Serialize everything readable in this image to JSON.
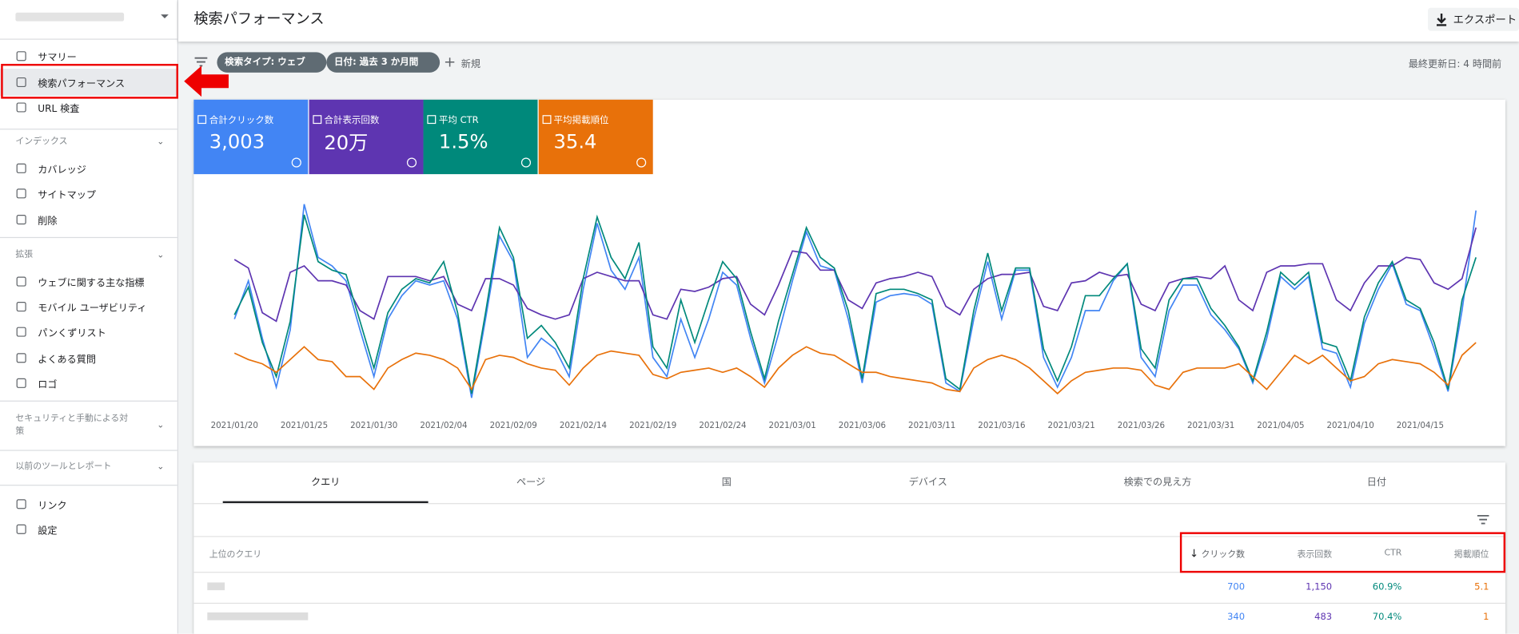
{
  "header": {
    "title": "検索パフォーマンス",
    "export": "エクスポート"
  },
  "nav": {
    "main": [
      "サマリー",
      "検索パフォーマンス",
      "URL 検査"
    ],
    "sections": [
      {
        "title": "インデックス",
        "items": [
          "カバレッジ",
          "サイトマップ",
          "削除"
        ]
      },
      {
        "title": "拡張",
        "items": [
          "ウェブに関する主な指標",
          "モバイル ユーザビリティ",
          "パンくずリスト",
          "よくある質問",
          "ロゴ"
        ]
      },
      {
        "title": "セキュリティと手動による対策",
        "items": []
      },
      {
        "title": "以前のツールとレポート",
        "items": []
      }
    ],
    "bottom": [
      "リンク",
      "設定"
    ]
  },
  "filters": {
    "chips": [
      "検索タイプ: ウェブ",
      "日付: 過去 3 か月間"
    ],
    "new": "新規",
    "updated": "最終更新日: 4 時間前"
  },
  "chart_data": {
    "type": "line",
    "ylim": [
      0,
      100
    ],
    "categories": [
      "2021/01/20",
      null,
      null,
      null,
      null,
      "2021/01/25",
      null,
      null,
      null,
      null,
      "2021/01/30",
      null,
      null,
      null,
      null,
      "2021/02/04",
      null,
      null,
      null,
      null,
      "2021/02/09",
      null,
      null,
      null,
      null,
      "2021/02/14",
      null,
      null,
      null,
      null,
      "2021/02/19",
      null,
      null,
      null,
      null,
      "2021/02/24",
      null,
      null,
      null,
      null,
      "2021/03/01",
      null,
      null,
      null,
      null,
      "2021/03/06",
      null,
      null,
      null,
      null,
      "2021/03/11",
      null,
      null,
      null,
      null,
      "2021/03/16",
      null,
      null,
      null,
      null,
      "2021/03/21",
      null,
      null,
      null,
      null,
      "2021/03/26",
      null,
      null,
      null,
      null,
      "2021/03/31",
      null,
      null,
      null,
      null,
      "2021/04/05",
      null,
      null,
      null,
      null,
      "2021/04/10",
      null,
      null,
      null,
      null,
      "2021/04/15",
      null,
      null,
      null,
      null
    ],
    "series": [
      {
        "name": "合計クリック数",
        "total": "3,003",
        "color": "#4285f4",
        "values": [
          41,
          59,
          32,
          9,
          36,
          95,
          70,
          66,
          59,
          36,
          14,
          41,
          52,
          59,
          57,
          59,
          41,
          4,
          41,
          80,
          68,
          23,
          32,
          27,
          14,
          55,
          86,
          64,
          55,
          70,
          23,
          14,
          41,
          23,
          41,
          63,
          57,
          32,
          11,
          34,
          59,
          82,
          66,
          64,
          41,
          11,
          49,
          52,
          53,
          52,
          48,
          11,
          7,
          41,
          68,
          41,
          64,
          64,
          23,
          9,
          23,
          45,
          45,
          59,
          67,
          23,
          14,
          45,
          57,
          57,
          43,
          36,
          27,
          11,
          32,
          61,
          55,
          61,
          27,
          25,
          9,
          39,
          55,
          67,
          48,
          45,
          27,
          7,
          45,
          92
        ]
      },
      {
        "name": "合計表示回数",
        "total": "20万",
        "color": "#5e35b1",
        "values": [
          69,
          65,
          44,
          40,
          63,
          66,
          59,
          59,
          57,
          45,
          41,
          61,
          61,
          61,
          59,
          61,
          48,
          45,
          60,
          60,
          57,
          46,
          43,
          41,
          43,
          60,
          63,
          61,
          59,
          59,
          43,
          41,
          55,
          54,
          56,
          60,
          61,
          48,
          43,
          57,
          73,
          72,
          64,
          64,
          50,
          46,
          58,
          60,
          61,
          63,
          61,
          47,
          43,
          55,
          60,
          62,
          62,
          63,
          47,
          45,
          58,
          59,
          63,
          61,
          62,
          48,
          45,
          58,
          60,
          61,
          60,
          66,
          50,
          45,
          63,
          66,
          66,
          67,
          67,
          50,
          45,
          58,
          66,
          66,
          70,
          69,
          58,
          55,
          60,
          84
        ]
      },
      {
        "name": "平均 CTR",
        "total": "1.5%",
        "color": "#00897b",
        "values": [
          43,
          56,
          30,
          14,
          40,
          90,
          68,
          64,
          62,
          40,
          18,
          44,
          55,
          60,
          58,
          68,
          44,
          6,
          44,
          84,
          70,
          32,
          38,
          30,
          18,
          60,
          89,
          70,
          60,
          77,
          28,
          18,
          50,
          30,
          50,
          68,
          60,
          35,
          13,
          40,
          62,
          84,
          70,
          65,
          45,
          13,
          53,
          55,
          55,
          53,
          50,
          13,
          8,
          45,
          72,
          45,
          65,
          65,
          27,
          12,
          28,
          52,
          52,
          60,
          67,
          27,
          18,
          50,
          60,
          60,
          46,
          38,
          28,
          12,
          35,
          63,
          57,
          63,
          30,
          28,
          12,
          42,
          58,
          68,
          50,
          46,
          30,
          8,
          50,
          70
        ]
      },
      {
        "name": "平均掲載順位",
        "total": "35.4",
        "color": "#e8710a",
        "values": [
          25,
          22,
          20,
          16,
          22,
          28,
          22,
          21,
          14,
          14,
          8,
          18,
          22,
          25,
          24,
          22,
          18,
          8,
          22,
          24,
          23,
          20,
          18,
          17,
          10,
          18,
          24,
          26,
          25,
          24,
          15,
          13,
          16,
          17,
          18,
          16,
          18,
          14,
          9,
          18,
          24,
          28,
          25,
          24,
          20,
          16,
          16,
          14,
          13,
          12,
          11,
          8,
          7,
          18,
          22,
          24,
          22,
          18,
          12,
          6,
          12,
          16,
          17,
          18,
          18,
          17,
          10,
          8,
          16,
          18,
          18,
          18,
          20,
          14,
          8,
          16,
          24,
          20,
          24,
          18,
          12,
          14,
          20,
          22,
          21,
          20,
          16,
          10,
          24,
          30
        ]
      }
    ]
  },
  "table": {
    "tabs": [
      "クエリ",
      "ページ",
      "国",
      "デバイス",
      "検索での見え方",
      "日付"
    ],
    "query_header": "上位のクエリ",
    "headers": [
      "クリック数",
      "表示回数",
      "CTR",
      "掲載順位"
    ],
    "rows": [
      [
        "700",
        "1,150",
        "60.9%",
        "5.1"
      ],
      [
        "340",
        "483",
        "70.4%",
        "1"
      ]
    ]
  }
}
